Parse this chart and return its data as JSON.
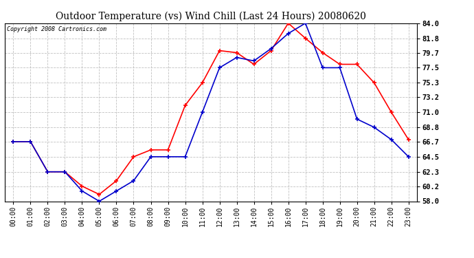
{
  "title": "Outdoor Temperature (vs) Wind Chill (Last 24 Hours) 20080620",
  "copyright": "Copyright 2008 Cartronics.com",
  "hours": [
    "00:00",
    "01:00",
    "02:00",
    "03:00",
    "04:00",
    "05:00",
    "06:00",
    "07:00",
    "08:00",
    "09:00",
    "10:00",
    "11:00",
    "12:00",
    "13:00",
    "14:00",
    "15:00",
    "16:00",
    "17:00",
    "18:00",
    "19:00",
    "20:00",
    "21:00",
    "22:00",
    "23:00"
  ],
  "outdoor_temp": [
    66.7,
    66.7,
    62.3,
    62.3,
    60.2,
    59.0,
    61.0,
    64.5,
    65.5,
    65.5,
    72.0,
    75.3,
    80.0,
    79.7,
    78.0,
    80.0,
    84.0,
    81.8,
    79.7,
    78.0,
    78.0,
    75.3,
    71.0,
    67.0
  ],
  "wind_chill": [
    66.7,
    66.7,
    62.3,
    62.3,
    59.5,
    58.0,
    59.5,
    61.0,
    64.5,
    64.5,
    64.5,
    71.0,
    77.5,
    79.0,
    78.5,
    80.3,
    82.5,
    84.0,
    77.5,
    77.5,
    70.0,
    68.8,
    67.0,
    64.5
  ],
  "temp_color": "#ff0000",
  "windchill_color": "#0000cc",
  "bg_color": "#ffffff",
  "plot_bg_color": "#ffffff",
  "grid_color": "#c0c0c0",
  "yticks": [
    58.0,
    60.2,
    62.3,
    64.5,
    66.7,
    68.8,
    71.0,
    73.2,
    75.3,
    77.5,
    79.7,
    81.8,
    84.0
  ],
  "ymin": 58.0,
  "ymax": 84.0,
  "title_fontsize": 10,
  "copyright_fontsize": 6,
  "tick_fontsize": 7,
  "ytick_fontsize": 7.5
}
